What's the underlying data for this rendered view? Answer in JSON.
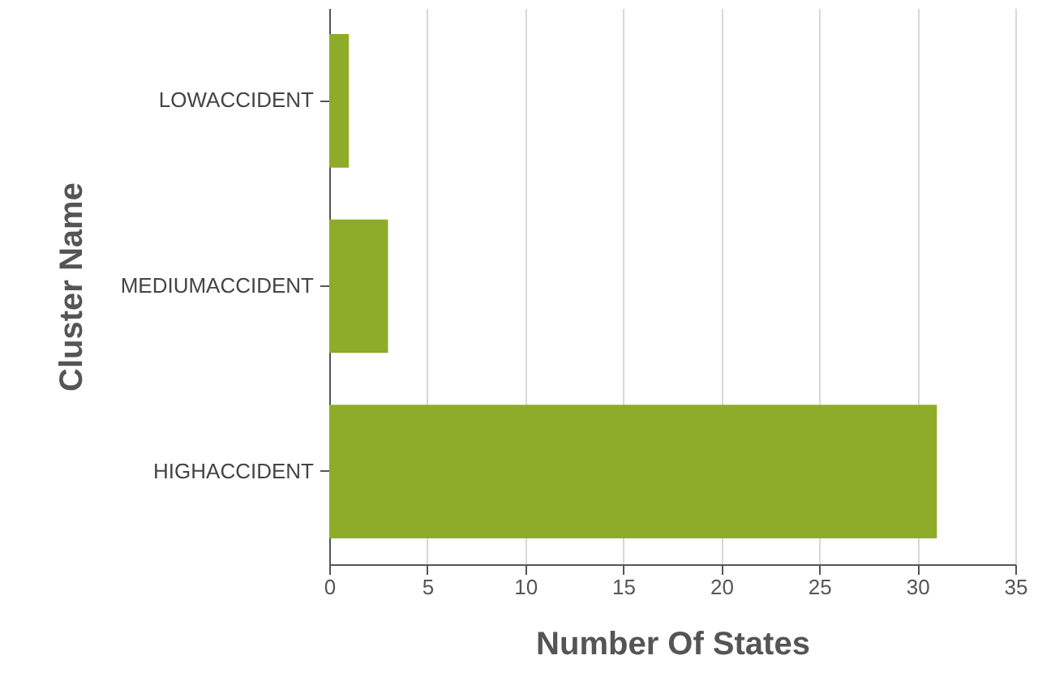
{
  "chart_data": {
    "type": "bar",
    "orientation": "horizontal",
    "xlabel": "Number Of States",
    "ylabel": "Cluster Name",
    "categories": [
      "LOWACCIDENT",
      "MEDIUMACCIDENT",
      "HIGHACCIDENT"
    ],
    "values": [
      1,
      3,
      31
    ],
    "color": "#8eac2a",
    "xlim": [
      0,
      35
    ],
    "xticks": [
      0,
      5,
      10,
      15,
      20,
      25,
      30,
      35
    ],
    "grid": "x"
  }
}
